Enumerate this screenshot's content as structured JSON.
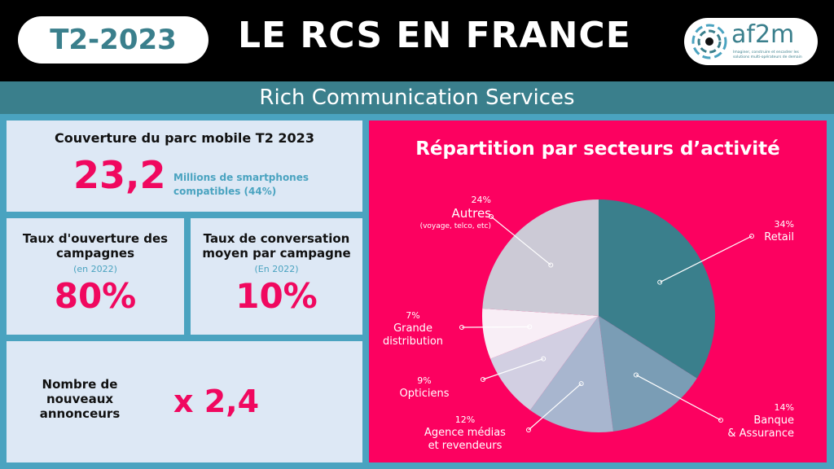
{
  "header": {
    "period": "T2-2023",
    "title": "LE RCS EN FRANCE",
    "logo_text": "af2m",
    "logo_tagline": "Imaginer, construire et encadrer les solutions multi-opérateurs de demain",
    "subtitle": "Rich Communication Services"
  },
  "coverage": {
    "title": "Couverture du parc mobile T2 2023",
    "value": "23,2",
    "caption_line1": "Millions de smartphones",
    "caption_line2": "compatibles (44%)"
  },
  "open_rate": {
    "title_line1": "Taux d'ouverture des",
    "title_line2": "campagnes",
    "note": "(en 2022)",
    "value": "80%"
  },
  "conversation_rate": {
    "title_line1": "Taux de conversation",
    "title_line2": "moyen par campagne",
    "note": "(En 2022)",
    "value": "10%"
  },
  "advertisers": {
    "line1": "Nombre de",
    "line2": "nouveaux",
    "line3": "annonceurs",
    "value": "x 2,4"
  },
  "chart_data": {
    "type": "pie",
    "title": "Répartition par secteurs d’activité",
    "categories": [
      "Retail",
      "Banque & Assurance",
      "Agence médias et revendeurs",
      "Opticiens",
      "Grande distribution",
      "Autres"
    ],
    "values": [
      34,
      14,
      12,
      9,
      7,
      24
    ],
    "labels": [
      {
        "pct": "34%",
        "line1": "Retail",
        "line2": ""
      },
      {
        "pct": "14%",
        "line1": "Banque",
        "line2": "& Assurance"
      },
      {
        "pct": "12%",
        "line1": "Agence médias",
        "line2": "et revendeurs"
      },
      {
        "pct": "9%",
        "line1": "Opticiens",
        "line2": ""
      },
      {
        "pct": "7%",
        "line1": "Grande",
        "line2": "distribution"
      },
      {
        "pct": "24%",
        "line1": "Autres",
        "line2": "(voyage, telco, etc)"
      }
    ],
    "colors": [
      "#3a7f8c",
      "#7a9db5",
      "#a8b6cf",
      "#d2cfe2",
      "#f8eef6",
      "#cccad6"
    ]
  }
}
